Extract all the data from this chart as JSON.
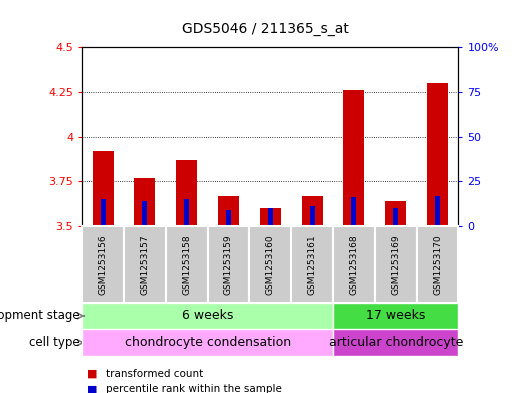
{
  "title": "GDS5046 / 211365_s_at",
  "samples": [
    "GSM1253156",
    "GSM1253157",
    "GSM1253158",
    "GSM1253159",
    "GSM1253160",
    "GSM1253161",
    "GSM1253168",
    "GSM1253169",
    "GSM1253170"
  ],
  "transformed_count": [
    3.92,
    3.77,
    3.87,
    3.67,
    3.6,
    3.67,
    4.26,
    3.64,
    4.3
  ],
  "percentile_rank": [
    15,
    14,
    15,
    9,
    10,
    11,
    16,
    10,
    17
  ],
  "ylim_left": [
    3.5,
    4.5
  ],
  "ylim_right": [
    0,
    100
  ],
  "yticks_left": [
    3.5,
    3.75,
    4.0,
    4.25,
    4.5
  ],
  "yticks_right": [
    0,
    25,
    50,
    75,
    100
  ],
  "gridlines": [
    3.75,
    4.0,
    4.25
  ],
  "bar_color_red": "#cc0000",
  "bar_color_blue": "#0000cc",
  "bar_width": 0.5,
  "blue_bar_width": 0.12,
  "dev_6w_label": "6 weeks",
  "dev_6w_color": "#aaffaa",
  "dev_17w_label": "17 weeks",
  "dev_17w_color": "#44dd44",
  "cell_cc_label": "chondrocyte condensation",
  "cell_cc_color": "#ffaaff",
  "cell_ac_label": "articular chondrocyte",
  "cell_ac_color": "#cc44cc",
  "dev_stage_label": "development stage",
  "cell_type_label": "cell type",
  "legend_red": "transformed count",
  "legend_blue": "percentile rank within the sample",
  "bg_color": "#ffffff",
  "ax_bg_color": "#ffffff",
  "tick_bg_color": "#cccccc",
  "n_6w": 6,
  "n_total": 9
}
